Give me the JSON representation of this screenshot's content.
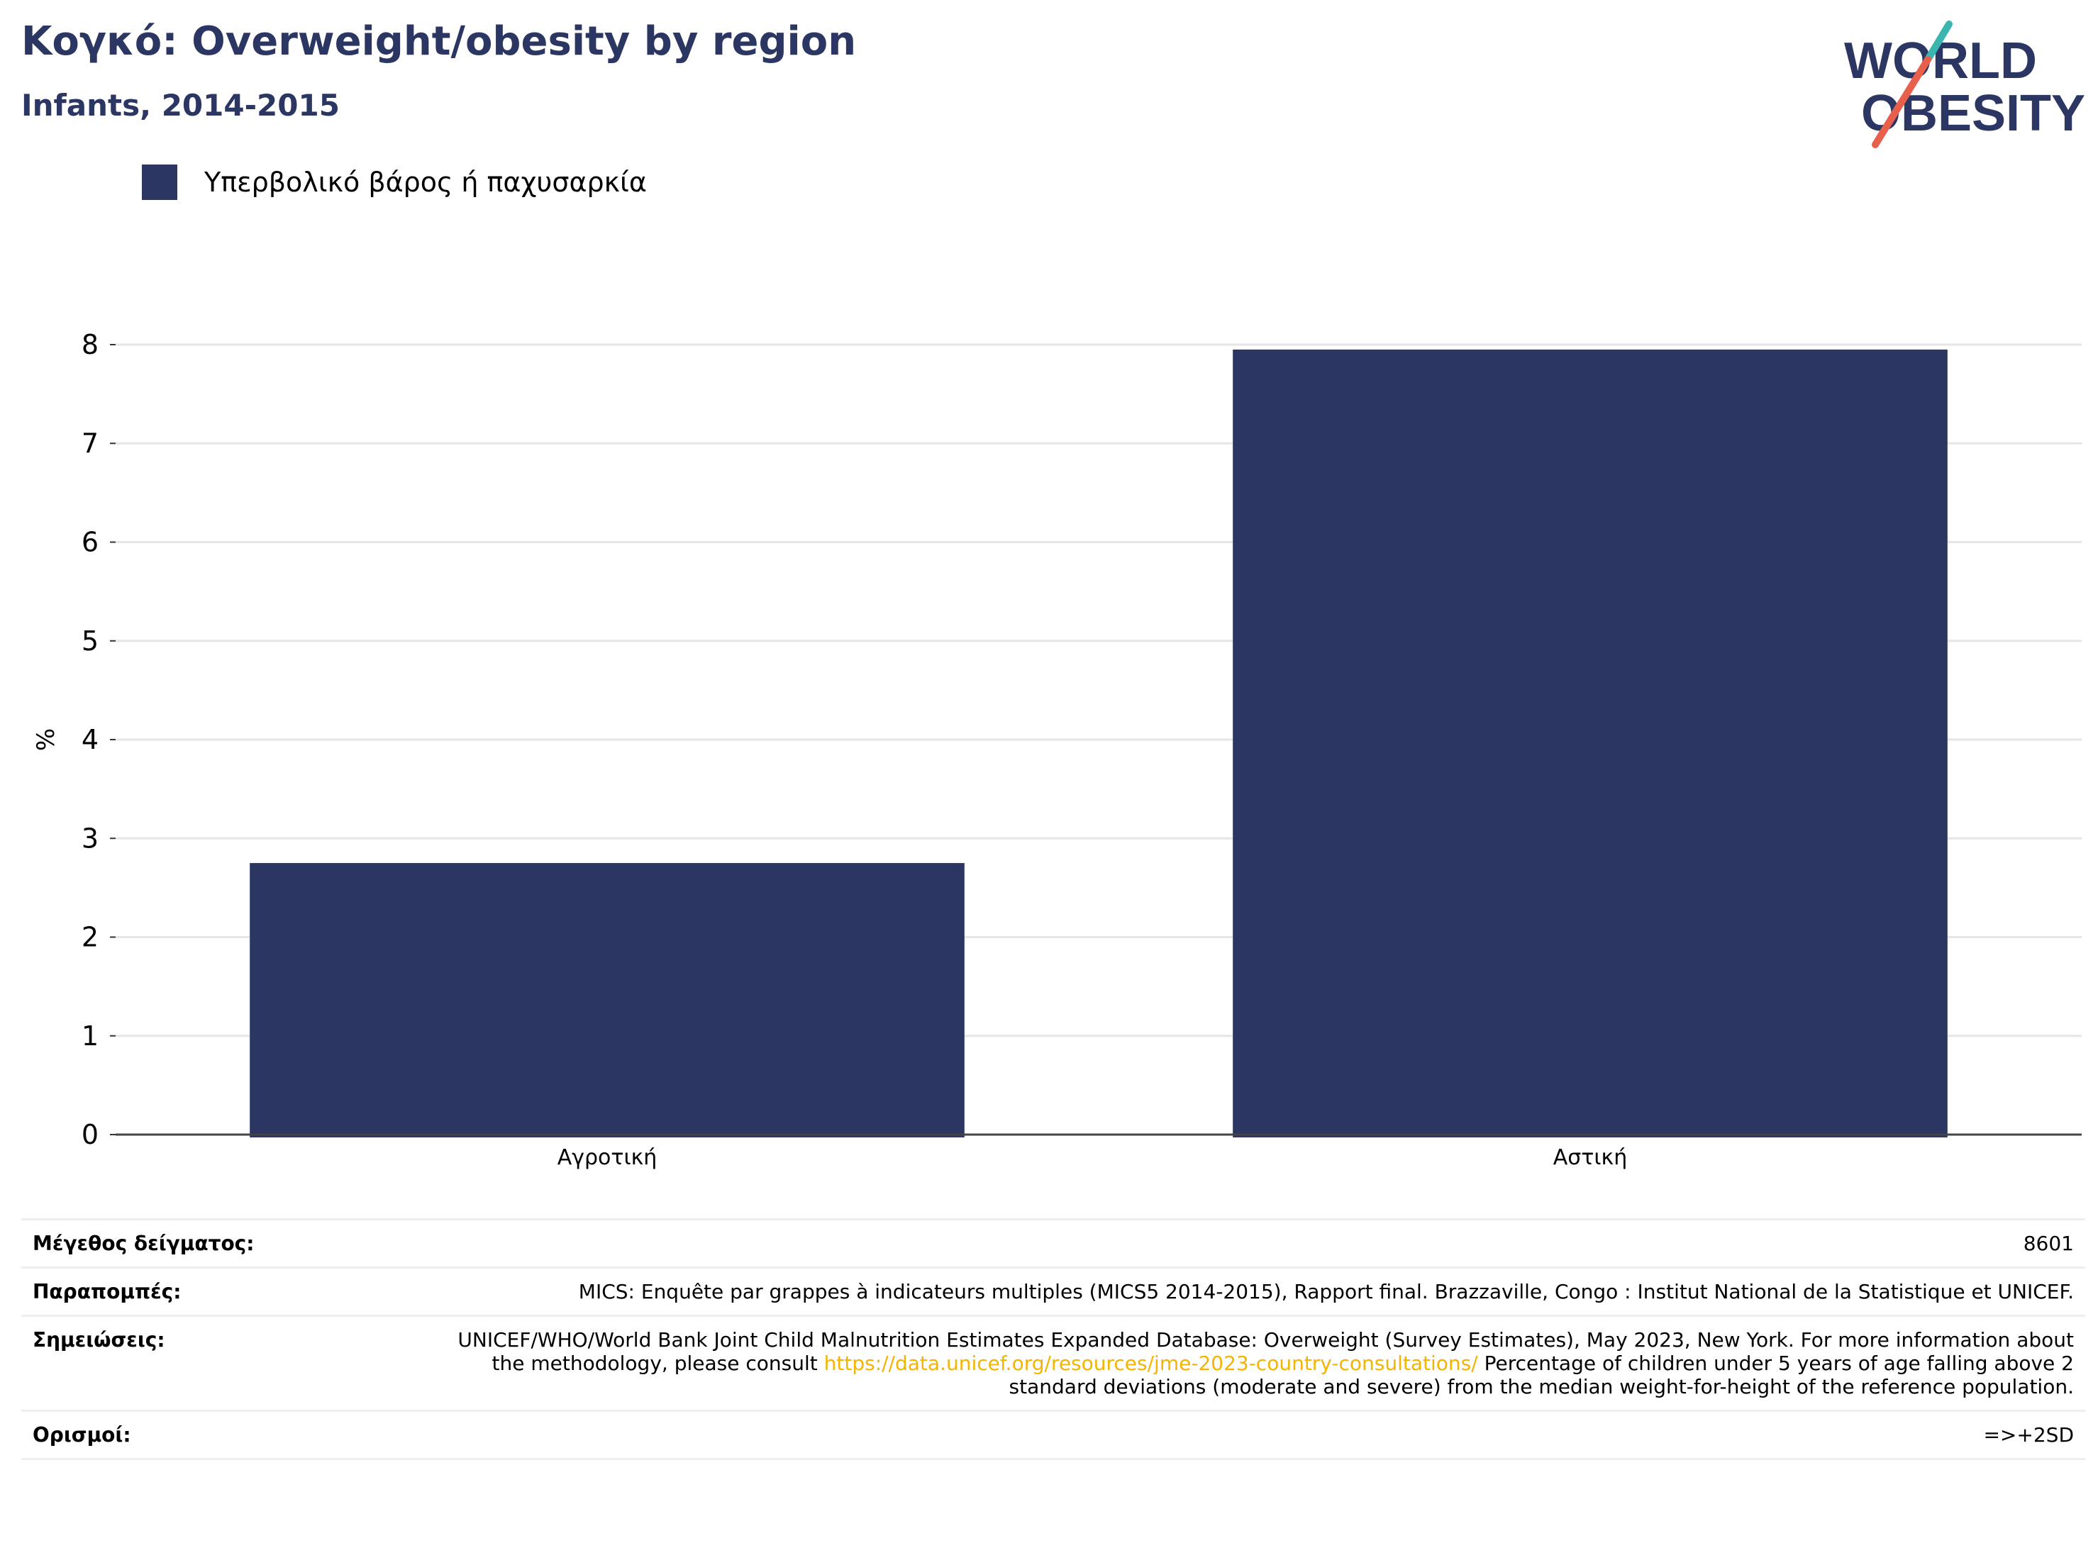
{
  "header": {
    "title": "Κογκό: Overweight/obesity by region",
    "subtitle": "Infants, 2014-2015"
  },
  "logo": {
    "line1": "WORLD",
    "line2": "OBESITY",
    "accent_teal": "#3ab5b0",
    "accent_red": "#e8604c"
  },
  "legend": {
    "label": "Υπερβολικό βάρος ή παχυσαρκία"
  },
  "chart_data": {
    "type": "bar",
    "title": "Κογκό: Overweight/obesity by region",
    "subtitle": "Infants, 2014-2015",
    "categories": [
      "Αγροτική",
      "Αστική"
    ],
    "series": [
      {
        "name": "Υπερβολικό βάρος ή παχυσαρκία",
        "values": [
          2.75,
          7.95
        ],
        "color": "#2b3663"
      }
    ],
    "xlabel": "",
    "ylabel": "%",
    "ylim": [
      0,
      8
    ],
    "yticks": [
      0,
      1,
      2,
      3,
      4,
      5,
      6,
      7,
      8
    ],
    "grid": true,
    "legend_position": "top-left"
  },
  "info": {
    "sample_label": "Μέγεθος δείγματος:",
    "sample_value": "8601",
    "refs_label": "Παραπομπές:",
    "refs_value": "MICS: Enquête par grappes à indicateurs multiples (MICS5 2014-2015), Rapport final. Brazzaville, Congo : Institut National de la Statistique et UNICEF.",
    "notes_label": "Σημειώσεις:",
    "notes_before": "UNICEF/WHO/World Bank Joint Child Malnutrition Estimates Expanded Database: Overweight (Survey Estimates), May 2023, New York. For more information about the methodology, please consult",
    "notes_link": "https://data.unicef.org/resources/jme-2023-country-consultations/",
    "notes_after": "Percentage of children under 5 years of age falling above 2 standard deviations (moderate and severe) from the median weight-for-height of the reference population.",
    "defs_label": "Ορισμοί:",
    "defs_value": "=>+2SD"
  }
}
